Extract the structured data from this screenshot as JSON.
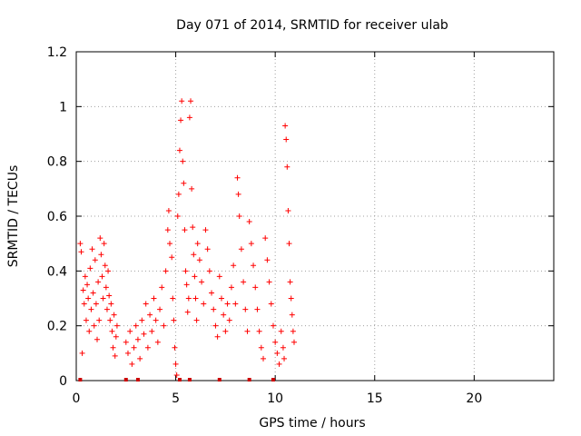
{
  "chart_data": {
    "type": "scatter",
    "title": "Day 071 of 2014, SRMTID for receiver ulab",
    "xlabel": "GPS time / hours",
    "ylabel": "SRMTID / TECUs",
    "xlim": [
      0,
      24
    ],
    "ylim": [
      0,
      1.2
    ],
    "x_ticks": [
      0,
      5,
      10,
      15,
      20
    ],
    "x_tick_labels": [
      "0",
      "5",
      "10",
      "15",
      "20"
    ],
    "y_ticks": [
      0,
      0.2,
      0.4,
      0.6,
      0.8,
      1.0,
      1.2
    ],
    "y_tick_labels": [
      "0",
      "0.2",
      "0.4",
      "0.6",
      "0.8",
      "1",
      "1.2"
    ],
    "grid": true,
    "marker": "+",
    "color": "#ff0000",
    "series": [
      {
        "name": "SRMTID",
        "points": [
          [
            0.2,
            0.5
          ],
          [
            0.25,
            0.47
          ],
          [
            0.3,
            0.1
          ],
          [
            0.35,
            0.33
          ],
          [
            0.4,
            0.28
          ],
          [
            0.45,
            0.38
          ],
          [
            0.5,
            0.22
          ],
          [
            0.55,
            0.35
          ],
          [
            0.6,
            0.3
          ],
          [
            0.65,
            0.18
          ],
          [
            0.7,
            0.41
          ],
          [
            0.75,
            0.26
          ],
          [
            0.8,
            0.48
          ],
          [
            0.85,
            0.32
          ],
          [
            0.9,
            0.2
          ],
          [
            0.95,
            0.44
          ],
          [
            1.0,
            0.28
          ],
          [
            1.05,
            0.15
          ],
          [
            1.1,
            0.36
          ],
          [
            1.15,
            0.22
          ],
          [
            1.2,
            0.52
          ],
          [
            1.25,
            0.46
          ],
          [
            1.3,
            0.38
          ],
          [
            1.35,
            0.3
          ],
          [
            1.4,
            0.5
          ],
          [
            1.45,
            0.42
          ],
          [
            1.5,
            0.34
          ],
          [
            1.55,
            0.26
          ],
          [
            1.6,
            0.4
          ],
          [
            1.65,
            0.31
          ],
          [
            1.7,
            0.22
          ],
          [
            1.75,
            0.28
          ],
          [
            1.8,
            0.18
          ],
          [
            1.85,
            0.12
          ],
          [
            1.9,
            0.24
          ],
          [
            1.95,
            0.09
          ],
          [
            2.0,
            0.16
          ],
          [
            2.05,
            0.2
          ],
          [
            2.5,
            0.14
          ],
          [
            2.6,
            0.1
          ],
          [
            2.7,
            0.18
          ],
          [
            2.8,
            0.06
          ],
          [
            2.9,
            0.12
          ],
          [
            3.0,
            0.2
          ],
          [
            3.1,
            0.15
          ],
          [
            3.2,
            0.08
          ],
          [
            3.3,
            0.22
          ],
          [
            3.4,
            0.17
          ],
          [
            3.5,
            0.28
          ],
          [
            3.6,
            0.12
          ],
          [
            3.7,
            0.24
          ],
          [
            3.8,
            0.18
          ],
          [
            3.9,
            0.3
          ],
          [
            4.0,
            0.22
          ],
          [
            4.1,
            0.14
          ],
          [
            4.2,
            0.26
          ],
          [
            4.3,
            0.34
          ],
          [
            4.4,
            0.2
          ],
          [
            4.5,
            0.4
          ],
          [
            4.6,
            0.55
          ],
          [
            4.65,
            0.62
          ],
          [
            4.7,
            0.5
          ],
          [
            4.8,
            0.45
          ],
          [
            4.85,
            0.3
          ],
          [
            4.9,
            0.22
          ],
          [
            4.95,
            0.12
          ],
          [
            5.0,
            0.06
          ],
          [
            5.05,
            0.02
          ],
          [
            5.1,
            0.6
          ],
          [
            5.15,
            0.68
          ],
          [
            5.2,
            0.84
          ],
          [
            5.25,
            0.95
          ],
          [
            5.3,
            1.02
          ],
          [
            5.35,
            0.8
          ],
          [
            5.4,
            0.72
          ],
          [
            5.45,
            0.55
          ],
          [
            5.5,
            0.4
          ],
          [
            5.55,
            0.35
          ],
          [
            5.6,
            0.25
          ],
          [
            5.65,
            0.3
          ],
          [
            5.7,
            0.96
          ],
          [
            5.75,
            1.02
          ],
          [
            5.8,
            0.7
          ],
          [
            5.85,
            0.56
          ],
          [
            5.9,
            0.46
          ],
          [
            5.95,
            0.38
          ],
          [
            6.0,
            0.3
          ],
          [
            6.05,
            0.22
          ],
          [
            6.1,
            0.5
          ],
          [
            6.2,
            0.44
          ],
          [
            6.3,
            0.36
          ],
          [
            6.4,
            0.28
          ],
          [
            6.5,
            0.55
          ],
          [
            6.6,
            0.48
          ],
          [
            6.7,
            0.4
          ],
          [
            6.8,
            0.32
          ],
          [
            6.9,
            0.26
          ],
          [
            7.0,
            0.2
          ],
          [
            7.1,
            0.16
          ],
          [
            7.2,
            0.38
          ],
          [
            7.3,
            0.3
          ],
          [
            7.4,
            0.24
          ],
          [
            7.5,
            0.18
          ],
          [
            7.6,
            0.28
          ],
          [
            7.7,
            0.22
          ],
          [
            7.8,
            0.34
          ],
          [
            7.9,
            0.42
          ],
          [
            8.0,
            0.28
          ],
          [
            8.1,
            0.74
          ],
          [
            8.15,
            0.68
          ],
          [
            8.2,
            0.6
          ],
          [
            8.3,
            0.48
          ],
          [
            8.4,
            0.36
          ],
          [
            8.5,
            0.26
          ],
          [
            8.6,
            0.18
          ],
          [
            8.7,
            0.58
          ],
          [
            8.8,
            0.5
          ],
          [
            8.9,
            0.42
          ],
          [
            9.0,
            0.34
          ],
          [
            9.1,
            0.26
          ],
          [
            9.2,
            0.18
          ],
          [
            9.3,
            0.12
          ],
          [
            9.4,
            0.08
          ],
          [
            9.5,
            0.52
          ],
          [
            9.6,
            0.44
          ],
          [
            9.7,
            0.36
          ],
          [
            9.8,
            0.28
          ],
          [
            9.9,
            0.2
          ],
          [
            10.0,
            0.14
          ],
          [
            10.1,
            0.1
          ],
          [
            10.2,
            0.06
          ],
          [
            10.3,
            0.18
          ],
          [
            10.4,
            0.12
          ],
          [
            10.45,
            0.08
          ],
          [
            10.5,
            0.93
          ],
          [
            10.55,
            0.88
          ],
          [
            10.6,
            0.78
          ],
          [
            10.65,
            0.62
          ],
          [
            10.7,
            0.5
          ],
          [
            10.75,
            0.36
          ],
          [
            10.8,
            0.3
          ],
          [
            10.85,
            0.24
          ],
          [
            10.9,
            0.18
          ],
          [
            10.95,
            0.14
          ]
        ]
      }
    ],
    "baseline_markers_x": [
      0.2,
      2.5,
      3.1,
      5.2,
      5.7,
      7.2,
      8.7,
      9.9
    ]
  }
}
